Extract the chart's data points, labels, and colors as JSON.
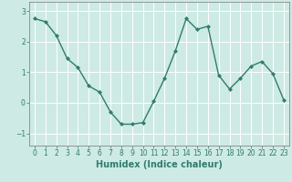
{
  "x": [
    0,
    1,
    2,
    3,
    4,
    5,
    6,
    7,
    8,
    9,
    10,
    11,
    12,
    13,
    14,
    15,
    16,
    17,
    18,
    19,
    20,
    21,
    22,
    23
  ],
  "y": [
    2.75,
    2.65,
    2.2,
    1.45,
    1.15,
    0.55,
    0.35,
    -0.3,
    -0.7,
    -0.7,
    -0.65,
    0.05,
    0.8,
    1.7,
    2.75,
    2.4,
    2.5,
    0.9,
    0.45,
    0.8,
    1.2,
    1.35,
    0.95,
    0.1
  ],
  "line_color": "#2e7d6e",
  "marker": "D",
  "marker_size": 2.0,
  "linewidth": 1.0,
  "xlabel": "Humidex (Indice chaleur)",
  "xlim": [
    -0.5,
    23.5
  ],
  "ylim": [
    -1.4,
    3.3
  ],
  "yticks": [
    -1,
    0,
    1,
    2,
    3
  ],
  "xticks": [
    0,
    1,
    2,
    3,
    4,
    5,
    6,
    7,
    8,
    9,
    10,
    11,
    12,
    13,
    14,
    15,
    16,
    17,
    18,
    19,
    20,
    21,
    22,
    23
  ],
  "bg_color": "#ceeae4",
  "grid_color": "#ffffff",
  "border_color": "#888888",
  "tick_color": "#2e7d6e",
  "tick_fontsize": 5.5,
  "xlabel_fontsize": 7.0
}
